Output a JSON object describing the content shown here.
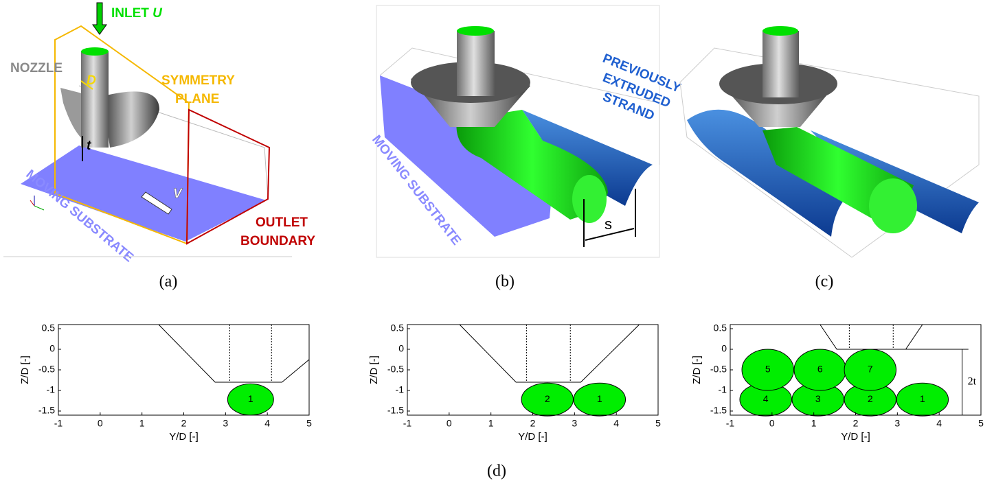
{
  "panels": {
    "a": {
      "inlet": "INLET",
      "inlet_var": "U",
      "nozzle": "NOZZLE",
      "diameter": "D",
      "symmetry_1": "SYMMETRY",
      "symmetry_2": "PLANE",
      "gap": "t",
      "substrate": "MOVING SUBSTRATE",
      "velocity": "V",
      "outlet_1": "OUTLET",
      "outlet_2": "BOUNDARY",
      "caption": "(a)"
    },
    "b": {
      "strand_1": "PREVIOUSLY",
      "strand_2": "EXTRUDED",
      "strand_3": "STRAND",
      "substrate": "MOVING SUBSTRATE",
      "spacing": "s",
      "caption": "(b)"
    },
    "c": {
      "caption": "(c)"
    },
    "d": {
      "caption": "(d)"
    }
  },
  "plots": [
    {
      "xlabel": "Y/D [-]",
      "ylabel": "Z/D [-]",
      "xlim": [
        -1,
        5
      ],
      "ylim": [
        -1.6,
        0.6
      ],
      "xticks": [
        -1,
        0,
        1,
        2,
        3,
        4,
        5
      ],
      "yticks": [
        0.5,
        0,
        -0.5,
        -1,
        -1.5
      ],
      "bead_labels": [
        "1"
      ]
    },
    {
      "xlabel": "Y/D [-]",
      "ylabel": "Z/D [-]",
      "xlim": [
        -1,
        5
      ],
      "ylim": [
        -1.6,
        0.6
      ],
      "xticks": [
        -1,
        0,
        1,
        2,
        3,
        4,
        5
      ],
      "yticks": [
        0.5,
        0,
        -0.5,
        -1,
        -1.5
      ],
      "bead_labels": [
        "1",
        "2"
      ]
    },
    {
      "xlabel": "Y/D [-]",
      "ylabel": "Z/D [-]",
      "xlim": [
        -1,
        5
      ],
      "ylim": [
        -1.6,
        0.6
      ],
      "xticks": [
        -1,
        0,
        1,
        2,
        3,
        4,
        5
      ],
      "yticks": [
        0.5,
        0,
        -0.5,
        -1,
        -1.5
      ],
      "bead_labels": [
        "1",
        "2",
        "3",
        "4",
        "5",
        "6",
        "7"
      ],
      "annotation": "2t"
    }
  ]
}
